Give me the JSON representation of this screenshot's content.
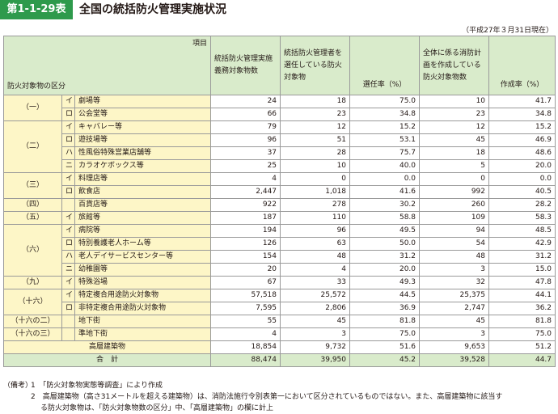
{
  "figure": {
    "label": "第1-1-29表",
    "title": "全国の統括防火管理実施状況",
    "date_note": "（平成27年３月31日現在）"
  },
  "header": {
    "corner_top": "項目",
    "corner_bottom": "防火対象物の区分",
    "col1": "統括防火管理実施義務対象物数",
    "col2": "統括防火管理者を選任している防火対象物",
    "col3": "選任率（%）",
    "col4": "全体に係る消防計画を作成している防火対象物数",
    "col5": "作成率（%）"
  },
  "groups": [
    {
      "label": "（一）",
      "rows": [
        {
          "sub": "イ",
          "name": "劇場等",
          "v1": "24",
          "v2": "18",
          "v3": "75.0",
          "v4": "10",
          "v5": "41.7"
        },
        {
          "sub": "ロ",
          "name": "公会堂等",
          "v1": "66",
          "v2": "23",
          "v3": "34.8",
          "v4": "23",
          "v5": "34.8"
        }
      ]
    },
    {
      "label": "（二）",
      "rows": [
        {
          "sub": "イ",
          "name": "キャバレー等",
          "v1": "79",
          "v2": "12",
          "v3": "15.2",
          "v4": "12",
          "v5": "15.2"
        },
        {
          "sub": "ロ",
          "name": "遊技場等",
          "v1": "96",
          "v2": "51",
          "v3": "53.1",
          "v4": "45",
          "v5": "46.9"
        },
        {
          "sub": "ハ",
          "name": "性風俗特殊営業店舗等",
          "v1": "37",
          "v2": "28",
          "v3": "75.7",
          "v4": "18",
          "v5": "48.6"
        },
        {
          "sub": "ニ",
          "name": "カラオケボックス等",
          "v1": "25",
          "v2": "10",
          "v3": "40.0",
          "v4": "5",
          "v5": "20.0"
        }
      ]
    },
    {
      "label": "（三）",
      "rows": [
        {
          "sub": "イ",
          "name": "料理店等",
          "v1": "4",
          "v2": "0",
          "v3": "0.0",
          "v4": "0",
          "v5": "0.0"
        },
        {
          "sub": "ロ",
          "name": "飲食店",
          "v1": "2,447",
          "v2": "1,018",
          "v3": "41.6",
          "v4": "992",
          "v5": "40.5"
        }
      ]
    },
    {
      "label": "（四）",
      "rows": [
        {
          "sub": "",
          "name": "百貨店等",
          "v1": "922",
          "v2": "278",
          "v3": "30.2",
          "v4": "260",
          "v5": "28.2"
        }
      ]
    },
    {
      "label": "（五）",
      "rows": [
        {
          "sub": "イ",
          "name": "旅館等",
          "v1": "187",
          "v2": "110",
          "v3": "58.8",
          "v4": "109",
          "v5": "58.3"
        }
      ]
    },
    {
      "label": "（六）",
      "rows": [
        {
          "sub": "イ",
          "name": "病院等",
          "v1": "194",
          "v2": "96",
          "v3": "49.5",
          "v4": "94",
          "v5": "48.5"
        },
        {
          "sub": "ロ",
          "name": "特別養護老人ホーム等",
          "v1": "126",
          "v2": "63",
          "v3": "50.0",
          "v4": "54",
          "v5": "42.9"
        },
        {
          "sub": "ハ",
          "name": "老人デイサービスセンター等",
          "v1": "154",
          "v2": "48",
          "v3": "31.2",
          "v4": "48",
          "v5": "31.2"
        },
        {
          "sub": "ニ",
          "name": "幼稚園等",
          "v1": "20",
          "v2": "4",
          "v3": "20.0",
          "v4": "3",
          "v5": "15.0"
        }
      ]
    },
    {
      "label": "（九）",
      "rows": [
        {
          "sub": "イ",
          "name": "特殊浴場",
          "v1": "67",
          "v2": "33",
          "v3": "49.3",
          "v4": "32",
          "v5": "47.8"
        }
      ]
    },
    {
      "label": "（十六）",
      "rows": [
        {
          "sub": "イ",
          "name": "特定複合用途防火対象物",
          "v1": "57,518",
          "v2": "25,572",
          "v3": "44.5",
          "v4": "25,375",
          "v5": "44.1"
        },
        {
          "sub": "ロ",
          "name": "非特定複合用途防火対象物",
          "v1": "7,595",
          "v2": "2,806",
          "v3": "36.9",
          "v4": "2,747",
          "v5": "36.2"
        }
      ]
    },
    {
      "label": "（十六の二）",
      "rows": [
        {
          "sub": "",
          "name": "地下街",
          "v1": "55",
          "v2": "45",
          "v3": "81.8",
          "v4": "45",
          "v5": "81.8"
        }
      ]
    },
    {
      "label": "（十六の三）",
      "rows": [
        {
          "sub": "",
          "name": "準地下街",
          "v1": "4",
          "v2": "3",
          "v3": "75.0",
          "v4": "3",
          "v5": "75.0"
        }
      ]
    }
  ],
  "highrise": {
    "name": "高層建築物",
    "v1": "18,854",
    "v2": "9,732",
    "v3": "51.6",
    "v4": "9,653",
    "v5": "51.2"
  },
  "total": {
    "name": "合　計",
    "v1": "88,474",
    "v2": "39,950",
    "v3": "45.2",
    "v4": "39,528",
    "v5": "44.7"
  },
  "notes": {
    "label": "（備考）",
    "note1": "1　「防火対象物実態等調査」により作成",
    "note2": "2　高層建築物（高さ31メートルを超える建築物）は、消防法施行令別表第一において区分されているものではない。また、高層建築物に該当す",
    "note2_cont": "る防火対象物は、「防火対象物数の区分」中、「高層建築物」の欄に計上"
  }
}
